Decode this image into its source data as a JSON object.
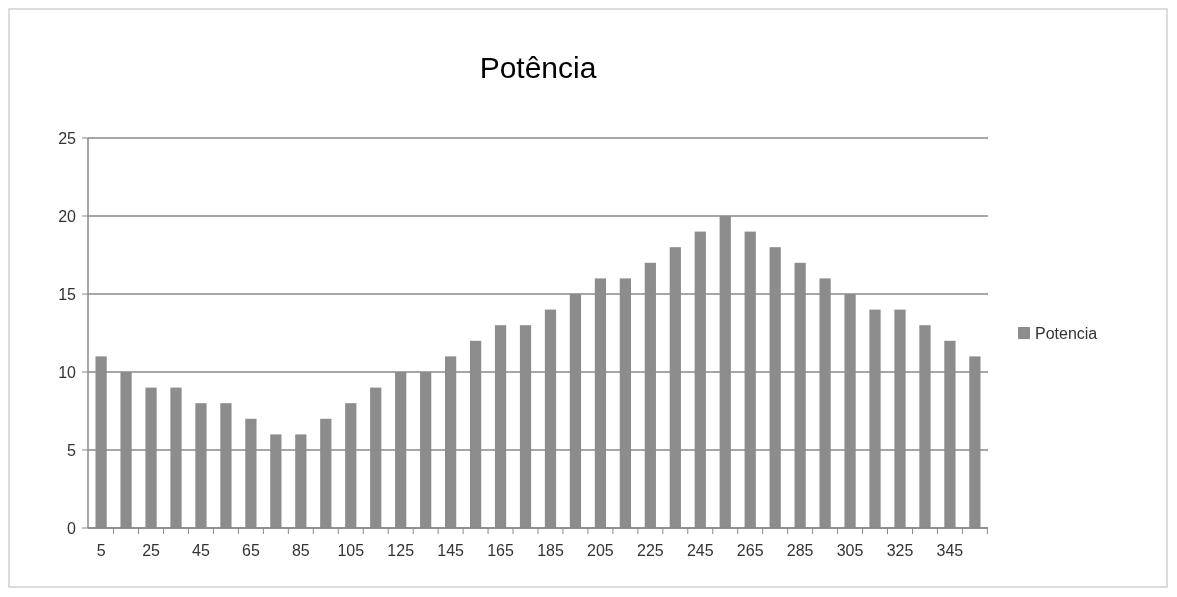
{
  "chart_data": {
    "type": "bar",
    "title": "Potência",
    "categories": [
      "5",
      null,
      "25",
      null,
      "45",
      null,
      "65",
      null,
      "85",
      null,
      "105",
      null,
      "125",
      null,
      "145",
      null,
      "165",
      null,
      "185",
      null,
      "205",
      null,
      "225",
      null,
      "245",
      null,
      "265",
      null,
      "285",
      null,
      "305",
      null,
      "325",
      null,
      "345",
      null
    ],
    "series": [
      {
        "name": "Potencia",
        "color": "#8c8c8c",
        "values": [
          11,
          10,
          9,
          9,
          8,
          8,
          7,
          6,
          6,
          7,
          8,
          9,
          10,
          10,
          11,
          12,
          13,
          13,
          14,
          15,
          16,
          16,
          17,
          18,
          19,
          20,
          19,
          18,
          17,
          16,
          15,
          14,
          14,
          13,
          12,
          11
        ]
      }
    ],
    "ylim": [
      0,
      25
    ],
    "yticks": [
      0,
      5,
      10,
      15,
      20,
      25
    ],
    "grid": "y",
    "legend": "right"
  }
}
